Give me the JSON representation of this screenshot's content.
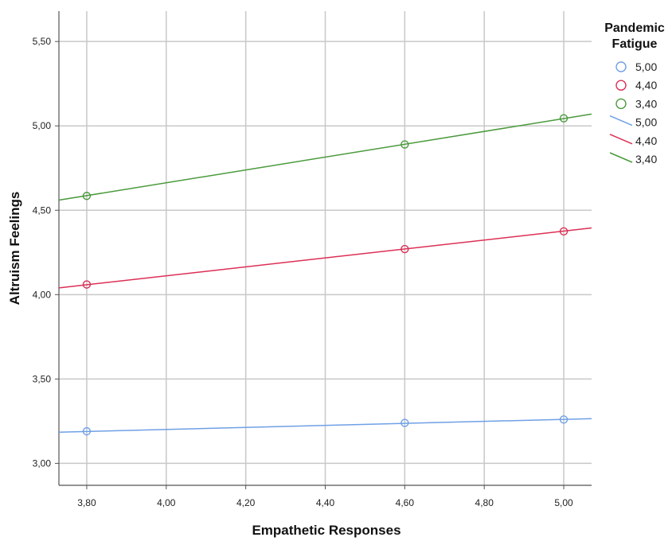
{
  "chart_data": {
    "type": "line",
    "xlabel": "Empathetic Responses",
    "ylabel": "Altruism Feelings",
    "xlim": [
      3.73,
      5.07
    ],
    "ylim": [
      2.87,
      5.68
    ],
    "x_ticks": [
      "3,80",
      "4,00",
      "4,20",
      "4,40",
      "4,60",
      "4,80",
      "5,00"
    ],
    "x_tick_values": [
      3.8,
      4.0,
      4.2,
      4.4,
      4.6,
      4.8,
      5.0
    ],
    "y_ticks": [
      "3,00",
      "3,50",
      "4,00",
      "4,50",
      "5,00",
      "5,50"
    ],
    "y_tick_values": [
      3.0,
      3.5,
      4.0,
      4.5,
      5.0,
      5.5
    ],
    "grid": true,
    "legend": {
      "title_line1": "Pandemic",
      "title_line2": "Fatigue",
      "placement": "right",
      "marker_entries": [
        "5,00",
        "4,40",
        "3,40"
      ],
      "line_entries": [
        "5,00",
        "4,40",
        "3,40"
      ]
    },
    "series": [
      {
        "name": "5,00",
        "color": "#6fa0e6",
        "points": [
          {
            "x": 3.8,
            "y": 3.19
          },
          {
            "x": 4.6,
            "y": 3.24
          },
          {
            "x": 5.0,
            "y": 3.26
          }
        ],
        "fit": {
          "start": [
            3.73,
            3.185
          ],
          "end": [
            5.07,
            3.265
          ]
        }
      },
      {
        "name": "4,40",
        "color": "#dc2f55",
        "points": [
          {
            "x": 3.8,
            "y": 4.06
          },
          {
            "x": 4.6,
            "y": 4.27
          },
          {
            "x": 5.0,
            "y": 4.375
          }
        ],
        "fit": {
          "start": [
            3.73,
            4.04
          ],
          "end": [
            5.07,
            4.395
          ]
        }
      },
      {
        "name": "3,40",
        "color": "#4a9a3c",
        "points": [
          {
            "x": 3.8,
            "y": 4.585
          },
          {
            "x": 4.6,
            "y": 4.89
          },
          {
            "x": 5.0,
            "y": 5.045
          }
        ],
        "fit": {
          "start": [
            3.73,
            4.56
          ],
          "end": [
            5.07,
            5.07
          ]
        }
      }
    ]
  }
}
